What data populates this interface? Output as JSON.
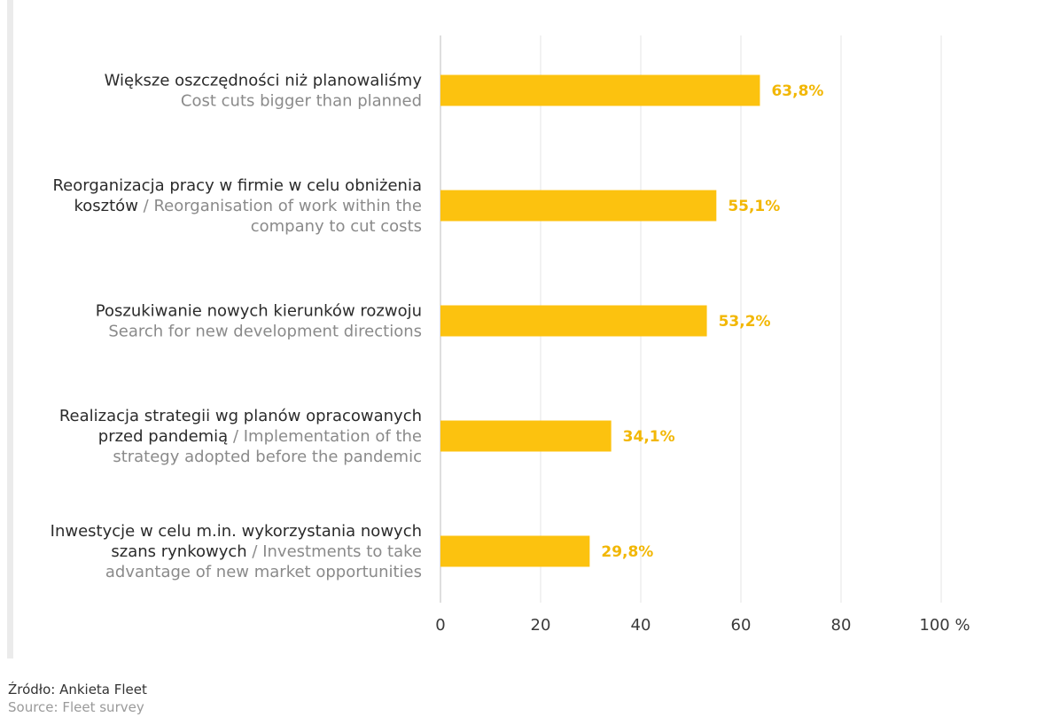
{
  "chart_data": {
    "type": "bar",
    "orientation": "horizontal",
    "categories": [
      {
        "pl_lines": [
          "Większe oszczędności niż planowaliśmy"
        ],
        "mixed_line": "",
        "en_lines": [
          "Cost cuts bigger than planned"
        ]
      },
      {
        "pl_lines": [
          "Reorganizacja pracy w firmie w celu obniżenia"
        ],
        "mixed_line": {
          "pl": "kosztów",
          "sep": " / ",
          "en": "Reorganisation of work within  the"
        },
        "en_lines": [
          "company to cut costs"
        ]
      },
      {
        "pl_lines": [
          "Poszukiwanie nowych kierunków rozwoju"
        ],
        "mixed_line": "",
        "en_lines": [
          "Search for new development directions"
        ]
      },
      {
        "pl_lines": [
          "Realizacja strategii wg planów opracowanych"
        ],
        "mixed_line": {
          "pl": "przed pandemią",
          "sep": " / ",
          "en": "Implementation of the"
        },
        "en_lines": [
          "strategy adopted before the pandemic"
        ]
      },
      {
        "pl_lines": [
          "Inwestycje w celu m.in. wykorzystania nowych"
        ],
        "mixed_line": {
          "pl": "szans rynkowych",
          "sep": " / ",
          "en": "Investments to take"
        },
        "en_lines": [
          "advantage of new market opportunities"
        ]
      }
    ],
    "values": [
      63.8,
      55.1,
      53.2,
      34.1,
      29.8
    ],
    "value_labels": [
      "63,8%",
      "55,1%",
      "53,2%",
      "34,1%",
      "29,8%"
    ],
    "xlim": [
      0,
      100
    ],
    "xticks": [
      0,
      20,
      40,
      60,
      80,
      100
    ],
    "xtick_labels": [
      "0",
      "20",
      "40",
      "60",
      "80",
      "100 %"
    ],
    "grid": true,
    "bar_color": "#fcc20f",
    "value_label_color": "#f2b705",
    "title": "",
    "xlabel": "",
    "ylabel": ""
  },
  "source": {
    "pl": "Źródło: Ankieta Fleet",
    "en": "Source: Fleet survey"
  }
}
